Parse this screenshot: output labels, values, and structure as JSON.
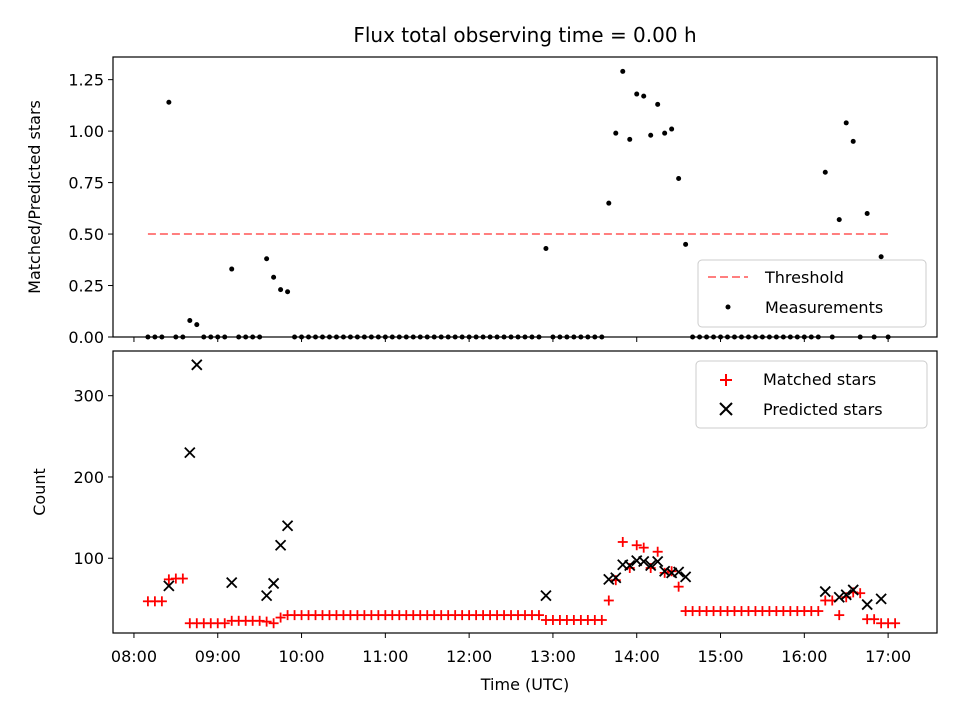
{
  "chart_data": [
    {
      "type": "scatter",
      "title": "Flux total observing time = 0.00 h",
      "ylabel": "Matched/Predicted stars",
      "ylim": [
        0,
        1.36
      ],
      "yticks": [
        "0.00",
        "0.25",
        "0.50",
        "0.75",
        "1.00",
        "1.25"
      ],
      "threshold": 0.5,
      "legend": {
        "position": "lower-right",
        "entries": [
          "Threshold",
          "Measurements"
        ]
      },
      "measurements": [
        [
          "08:10",
          0
        ],
        [
          "08:15",
          0
        ],
        [
          "08:20",
          0
        ],
        [
          "08:25",
          1.14
        ],
        [
          "08:30",
          0
        ],
        [
          "08:35",
          0
        ],
        [
          "08:40",
          0.08
        ],
        [
          "08:45",
          0.06
        ],
        [
          "08:50",
          0
        ],
        [
          "08:55",
          0
        ],
        [
          "09:00",
          0
        ],
        [
          "09:05",
          0
        ],
        [
          "09:10",
          0.33
        ],
        [
          "09:15",
          0
        ],
        [
          "09:20",
          0
        ],
        [
          "09:25",
          0
        ],
        [
          "09:30",
          0
        ],
        [
          "09:35",
          0.38
        ],
        [
          "09:40",
          0.29
        ],
        [
          "09:45",
          0.23
        ],
        [
          "09:50",
          0.22
        ],
        [
          "09:55",
          0
        ],
        [
          "10:00",
          0
        ],
        [
          "10:05",
          0
        ],
        [
          "10:10",
          0
        ],
        [
          "10:15",
          0
        ],
        [
          "10:20",
          0
        ],
        [
          "10:25",
          0
        ],
        [
          "10:30",
          0
        ],
        [
          "10:35",
          0
        ],
        [
          "10:40",
          0
        ],
        [
          "10:45",
          0
        ],
        [
          "10:50",
          0
        ],
        [
          "10:55",
          0
        ],
        [
          "11:00",
          0
        ],
        [
          "11:05",
          0
        ],
        [
          "11:10",
          0
        ],
        [
          "11:15",
          0
        ],
        [
          "11:20",
          0
        ],
        [
          "11:25",
          0
        ],
        [
          "11:30",
          0
        ],
        [
          "11:35",
          0
        ],
        [
          "11:40",
          0
        ],
        [
          "11:45",
          0
        ],
        [
          "11:50",
          0
        ],
        [
          "11:55",
          0
        ],
        [
          "12:00",
          0
        ],
        [
          "12:05",
          0
        ],
        [
          "12:10",
          0
        ],
        [
          "12:15",
          0
        ],
        [
          "12:20",
          0
        ],
        [
          "12:25",
          0
        ],
        [
          "12:30",
          0
        ],
        [
          "12:35",
          0
        ],
        [
          "12:40",
          0
        ],
        [
          "12:45",
          0
        ],
        [
          "12:50",
          0
        ],
        [
          "12:55",
          0.43
        ],
        [
          "13:00",
          0
        ],
        [
          "13:05",
          0
        ],
        [
          "13:10",
          0
        ],
        [
          "13:15",
          0
        ],
        [
          "13:20",
          0
        ],
        [
          "13:25",
          0
        ],
        [
          "13:30",
          0
        ],
        [
          "13:35",
          0
        ],
        [
          "13:40",
          0.65
        ],
        [
          "13:45",
          0.99
        ],
        [
          "13:50",
          1.29
        ],
        [
          "13:55",
          0.96
        ],
        [
          "14:00",
          1.18
        ],
        [
          "14:05",
          1.17
        ],
        [
          "14:10",
          0.98
        ],
        [
          "14:15",
          1.13
        ],
        [
          "14:20",
          0.99
        ],
        [
          "14:25",
          1.01
        ],
        [
          "14:30",
          0.77
        ],
        [
          "14:35",
          0.45
        ],
        [
          "14:40",
          0
        ],
        [
          "14:45",
          0
        ],
        [
          "14:50",
          0
        ],
        [
          "14:55",
          0
        ],
        [
          "15:00",
          0
        ],
        [
          "15:05",
          0
        ],
        [
          "15:10",
          0
        ],
        [
          "15:15",
          0
        ],
        [
          "15:20",
          0
        ],
        [
          "15:25",
          0
        ],
        [
          "15:30",
          0
        ],
        [
          "15:35",
          0
        ],
        [
          "15:40",
          0
        ],
        [
          "15:45",
          0
        ],
        [
          "15:50",
          0
        ],
        [
          "15:55",
          0
        ],
        [
          "16:00",
          0
        ],
        [
          "16:05",
          0
        ],
        [
          "16:10",
          0
        ],
        [
          "16:15",
          0.8
        ],
        [
          "16:20",
          0
        ],
        [
          "16:25",
          0.57
        ],
        [
          "16:30",
          1.04
        ],
        [
          "16:35",
          0.95
        ],
        [
          "16:40",
          0
        ],
        [
          "16:45",
          0.6
        ],
        [
          "16:50",
          0
        ],
        [
          "16:55",
          0.39
        ],
        [
          "17:00",
          0
        ]
      ]
    },
    {
      "type": "scatter",
      "xlabel": "Time (UTC)",
      "ylabel": "Count",
      "ylim": [
        8,
        355
      ],
      "xlim": [
        "07:45",
        "17:35"
      ],
      "yticks": [
        "100",
        "200",
        "300"
      ],
      "xticks": [
        "08:00",
        "09:00",
        "10:00",
        "11:00",
        "12:00",
        "13:00",
        "14:00",
        "15:00",
        "16:00",
        "17:00"
      ],
      "legend": {
        "position": "upper-right",
        "entries": [
          "Matched stars",
          "Predicted stars"
        ]
      },
      "matched": [
        [
          "08:10",
          47
        ],
        [
          "08:15",
          47
        ],
        [
          "08:20",
          47
        ],
        [
          "08:25",
          74
        ],
        [
          "08:30",
          75
        ],
        [
          "08:35",
          75
        ],
        [
          "08:40",
          20
        ],
        [
          "08:45",
          20
        ],
        [
          "08:50",
          20
        ],
        [
          "08:55",
          20
        ],
        [
          "09:00",
          20
        ],
        [
          "09:05",
          20
        ],
        [
          "09:10",
          23
        ],
        [
          "09:15",
          23
        ],
        [
          "09:20",
          23
        ],
        [
          "09:25",
          23
        ],
        [
          "09:30",
          23
        ],
        [
          "09:35",
          22
        ],
        [
          "09:40",
          20
        ],
        [
          "09:45",
          27
        ],
        [
          "09:50",
          30
        ],
        [
          "09:55",
          30
        ],
        [
          "10:00",
          30
        ],
        [
          "10:05",
          30
        ],
        [
          "10:10",
          30
        ],
        [
          "10:15",
          30
        ],
        [
          "10:20",
          30
        ],
        [
          "10:25",
          30
        ],
        [
          "10:30",
          30
        ],
        [
          "10:35",
          30
        ],
        [
          "10:40",
          30
        ],
        [
          "10:45",
          30
        ],
        [
          "10:50",
          30
        ],
        [
          "10:55",
          30
        ],
        [
          "11:00",
          30
        ],
        [
          "11:05",
          30
        ],
        [
          "11:10",
          30
        ],
        [
          "11:15",
          30
        ],
        [
          "11:20",
          30
        ],
        [
          "11:25",
          30
        ],
        [
          "11:30",
          30
        ],
        [
          "11:35",
          30
        ],
        [
          "11:40",
          30
        ],
        [
          "11:45",
          30
        ],
        [
          "11:50",
          30
        ],
        [
          "11:55",
          30
        ],
        [
          "12:00",
          30
        ],
        [
          "12:05",
          30
        ],
        [
          "12:10",
          30
        ],
        [
          "12:15",
          30
        ],
        [
          "12:20",
          30
        ],
        [
          "12:25",
          30
        ],
        [
          "12:30",
          30
        ],
        [
          "12:35",
          30
        ],
        [
          "12:40",
          30
        ],
        [
          "12:45",
          30
        ],
        [
          "12:50",
          30
        ],
        [
          "12:55",
          24
        ],
        [
          "13:00",
          24
        ],
        [
          "13:05",
          24
        ],
        [
          "13:10",
          24
        ],
        [
          "13:15",
          24
        ],
        [
          "13:20",
          24
        ],
        [
          "13:25",
          24
        ],
        [
          "13:30",
          24
        ],
        [
          "13:35",
          24
        ],
        [
          "13:40",
          48
        ],
        [
          "13:45",
          73
        ],
        [
          "13:50",
          120
        ],
        [
          "13:55",
          88
        ],
        [
          "14:00",
          116
        ],
        [
          "14:05",
          113
        ],
        [
          "14:10",
          88
        ],
        [
          "14:15",
          108
        ],
        [
          "14:20",
          82
        ],
        [
          "14:25",
          84
        ],
        [
          "14:30",
          65
        ],
        [
          "14:35",
          35
        ],
        [
          "14:40",
          35
        ],
        [
          "14:45",
          35
        ],
        [
          "14:50",
          35
        ],
        [
          "14:55",
          35
        ],
        [
          "15:00",
          35
        ],
        [
          "15:05",
          35
        ],
        [
          "15:10",
          35
        ],
        [
          "15:15",
          35
        ],
        [
          "15:20",
          35
        ],
        [
          "15:25",
          35
        ],
        [
          "15:30",
          35
        ],
        [
          "15:35",
          35
        ],
        [
          "15:40",
          35
        ],
        [
          "15:45",
          35
        ],
        [
          "15:50",
          35
        ],
        [
          "15:55",
          35
        ],
        [
          "16:00",
          35
        ],
        [
          "16:05",
          35
        ],
        [
          "16:10",
          35
        ],
        [
          "16:15",
          48
        ],
        [
          "16:20",
          48
        ],
        [
          "16:25",
          30
        ],
        [
          "16:30",
          52
        ],
        [
          "16:35",
          58
        ],
        [
          "16:40",
          57
        ],
        [
          "16:45",
          25
        ],
        [
          "16:50",
          25
        ],
        [
          "16:55",
          20
        ],
        [
          "17:00",
          20
        ],
        [
          "17:05",
          20
        ]
      ],
      "predicted": [
        [
          "08:25",
          66
        ],
        [
          "08:40",
          230
        ],
        [
          "08:45",
          338
        ],
        [
          "09:10",
          70
        ],
        [
          "09:35",
          54
        ],
        [
          "09:40",
          69
        ],
        [
          "09:45",
          116
        ],
        [
          "09:50",
          140
        ],
        [
          "12:55",
          54
        ],
        [
          "13:40",
          74
        ],
        [
          "13:45",
          76
        ],
        [
          "13:50",
          92
        ],
        [
          "13:55",
          91
        ],
        [
          "14:00",
          97
        ],
        [
          "14:05",
          96
        ],
        [
          "14:10",
          91
        ],
        [
          "14:15",
          96
        ],
        [
          "14:20",
          84
        ],
        [
          "14:25",
          82
        ],
        [
          "14:30",
          83
        ],
        [
          "14:35",
          77
        ],
        [
          "16:15",
          59
        ],
        [
          "16:25",
          52
        ],
        [
          "16:30",
          55
        ],
        [
          "16:35",
          61
        ],
        [
          "16:45",
          43
        ],
        [
          "16:55",
          50
        ]
      ]
    }
  ],
  "colors": {
    "threshold": "#ff7f7f",
    "matched": "#ff0000",
    "predicted": "#000000",
    "measurement": "#000000",
    "legend_border": "#cccccc"
  }
}
